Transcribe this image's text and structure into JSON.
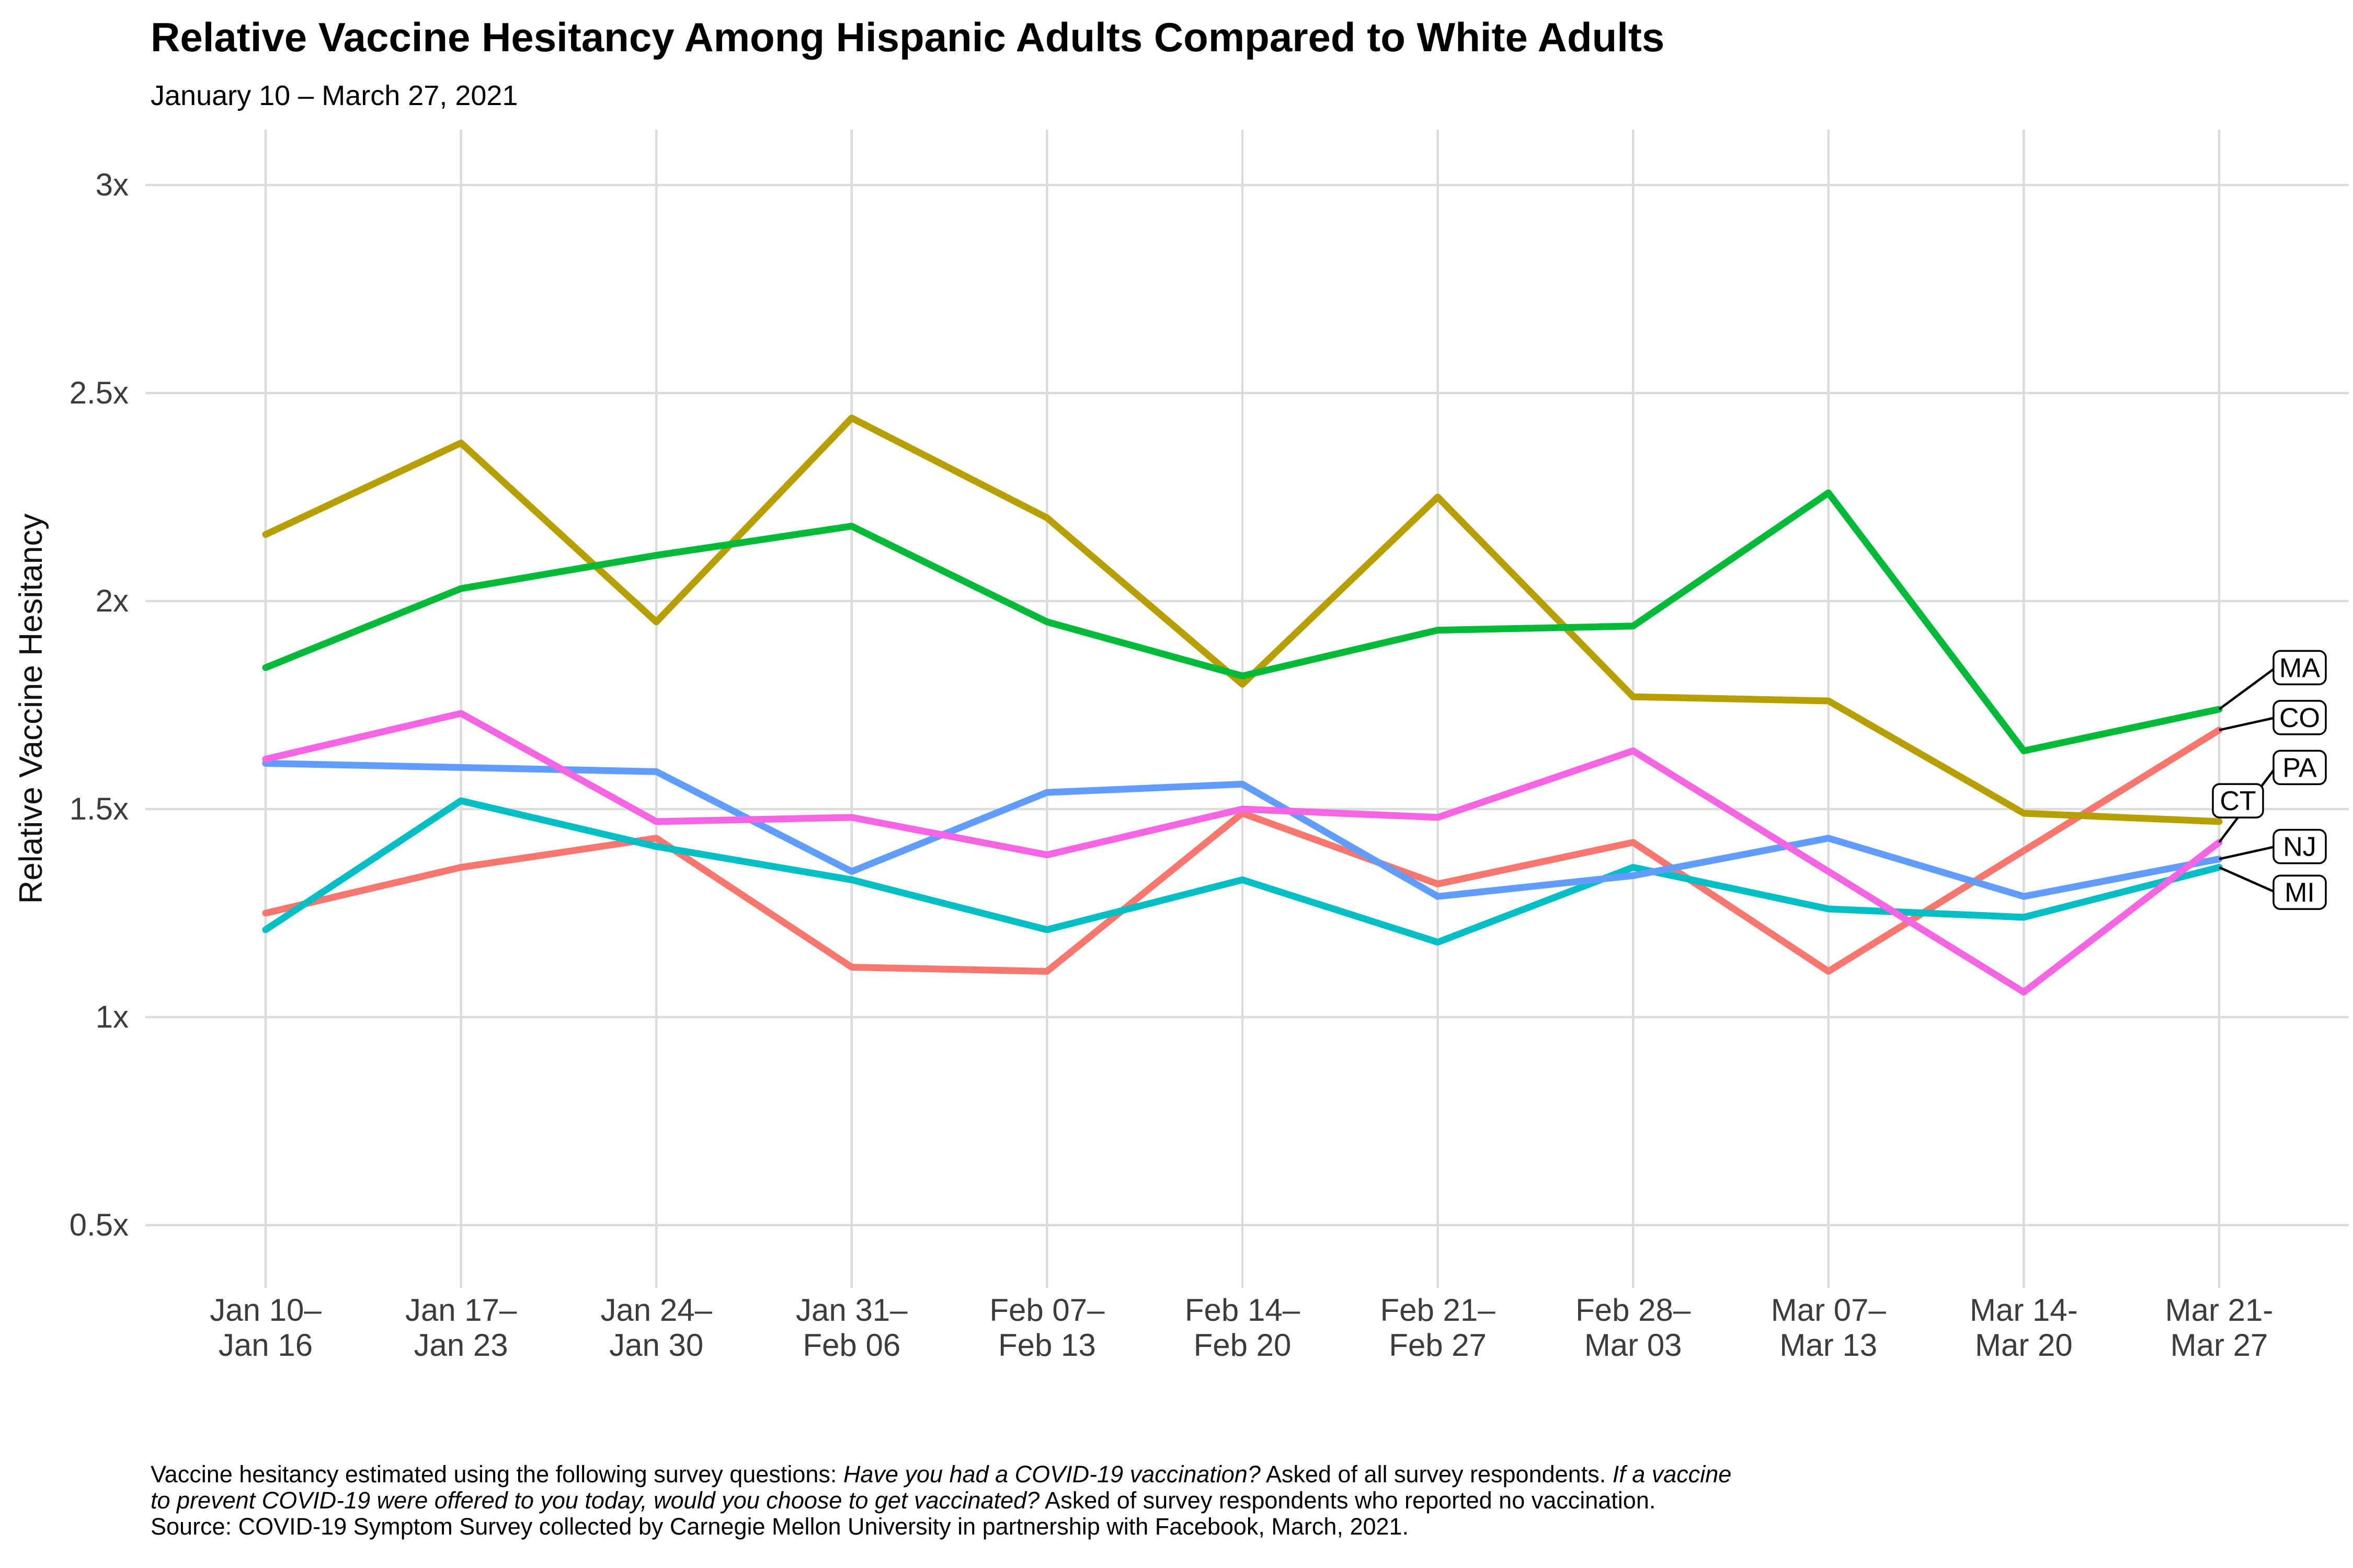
{
  "header": {
    "title": "Relative Vaccine Hesitancy Among Hispanic Adults Compared to White Adults",
    "subtitle": "January 10 – March 27, 2021"
  },
  "chart_data": {
    "type": "line",
    "title": "Relative Vaccine Hesitancy Among Hispanic Adults Compared to White Adults",
    "subtitle": "January 10 – March 27, 2021",
    "grid": true,
    "legend_position": "right-end-labels",
    "y_axis": {
      "title": "Relative Vaccine Hesitancy",
      "range": [
        0.5,
        3.0
      ],
      "ticks": [
        {
          "label": "3x",
          "value": 3.0
        },
        {
          "label": "2.5x",
          "value": 2.5
        },
        {
          "label": "2x",
          "value": 2.0
        },
        {
          "label": "1.5x",
          "value": 1.5
        },
        {
          "label": "1x",
          "value": 1.0
        },
        {
          "label": "0.5x",
          "value": 0.5
        }
      ]
    },
    "x_axis": {
      "categories": [
        {
          "line1": "Jan 10–",
          "line2": "Jan 16"
        },
        {
          "line1": "Jan 17–",
          "line2": "Jan 23"
        },
        {
          "line1": "Jan 24–",
          "line2": "Jan 30"
        },
        {
          "line1": "Jan 31–",
          "line2": "Feb 06"
        },
        {
          "line1": "Feb 07–",
          "line2": "Feb 13"
        },
        {
          "line1": "Feb 14–",
          "line2": "Feb 20"
        },
        {
          "line1": "Feb 21–",
          "line2": "Feb 27"
        },
        {
          "line1": "Feb 28–",
          "line2": "Mar 03"
        },
        {
          "line1": "Mar 07–",
          "line2": "Mar 13"
        },
        {
          "line1": "Mar 14-",
          "line2": "Mar 20"
        },
        {
          "line1": "Mar 21-",
          "line2": "Mar 27"
        }
      ]
    },
    "series": [
      {
        "name": "CO",
        "color": "#F8766D",
        "values": [
          1.25,
          1.36,
          1.43,
          1.12,
          1.11,
          1.49,
          1.32,
          1.42,
          1.11,
          1.4,
          1.69
        ]
      },
      {
        "name": "CT",
        "color": "#B79F00",
        "values": [
          2.16,
          2.38,
          1.95,
          2.44,
          2.2,
          1.8,
          2.25,
          1.77,
          1.76,
          1.49,
          1.47
        ]
      },
      {
        "name": "MA",
        "color": "#00BA38",
        "values": [
          1.84,
          2.03,
          2.11,
          2.18,
          1.95,
          1.82,
          1.93,
          1.94,
          2.26,
          1.64,
          1.74
        ]
      },
      {
        "name": "MI",
        "color": "#00BFC4",
        "values": [
          1.21,
          1.52,
          1.41,
          1.33,
          1.21,
          1.33,
          1.18,
          1.36,
          1.26,
          1.24,
          1.36
        ]
      },
      {
        "name": "NJ",
        "color": "#619CFF",
        "values": [
          1.61,
          1.6,
          1.59,
          1.35,
          1.54,
          1.56,
          1.29,
          1.34,
          1.43,
          1.29,
          1.38
        ]
      },
      {
        "name": "PA",
        "color": "#F564E3",
        "values": [
          1.62,
          1.73,
          1.47,
          1.48,
          1.39,
          1.5,
          1.48,
          1.64,
          1.35,
          1.06,
          1.42
        ]
      }
    ],
    "end_labels": [
      {
        "text": "MA",
        "series": "MA",
        "label_value": 1.84,
        "connector": true,
        "near_line": false
      },
      {
        "text": "CO",
        "series": "CO",
        "label_value": 1.72,
        "connector": true,
        "near_line": false
      },
      {
        "text": "PA",
        "series": "PA",
        "label_value": 1.6,
        "connector": true,
        "near_line": false
      },
      {
        "text": "CT",
        "series": "CT",
        "label_value": 1.52,
        "connector": false,
        "near_line": true
      },
      {
        "text": "NJ",
        "series": "NJ",
        "label_value": 1.41,
        "connector": true,
        "near_line": false
      },
      {
        "text": "MI",
        "series": "MI",
        "label_value": 1.3,
        "connector": true,
        "near_line": false
      }
    ],
    "style": {
      "background": "#FFFFFF",
      "grid_color": "#DCDCDC",
      "axis_text_color": "#3C3C3C",
      "axis_title_color": "#111111",
      "label_box_fill": "#FFFFFF",
      "label_box_border": "#000000"
    }
  },
  "caption": {
    "lines": [
      {
        "segments": [
          {
            "t": "Vaccine hesitancy estimated using the following survey questions: ",
            "i": false
          },
          {
            "t": "Have you had a COVID-19 vaccination?",
            "i": true
          },
          {
            "t": " Asked of all survey respondents. ",
            "i": false
          },
          {
            "t": "If a vaccine",
            "i": true
          }
        ]
      },
      {
        "segments": [
          {
            "t": "to prevent COVID-19 were offered to you today, would you choose to get vaccinated?",
            "i": true
          },
          {
            "t": " Asked of survey respondents who reported no vaccination.",
            "i": false
          }
        ]
      },
      {
        "segments": [
          {
            "t": "Source: COVID-19 Symptom Survey collected by Carnegie Mellon University in partnership with Facebook, March, 2021.",
            "i": false
          }
        ]
      }
    ]
  }
}
